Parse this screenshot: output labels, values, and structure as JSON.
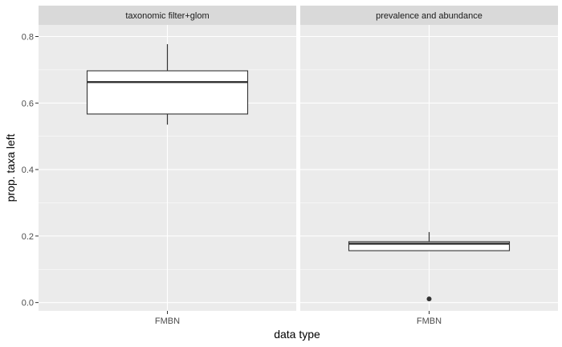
{
  "chart_data": {
    "type": "boxplot",
    "xlabel": "data type",
    "ylabel": "prop. taxa left",
    "ylim": [
      -0.025,
      0.835
    ],
    "yticks": [
      0.0,
      0.2,
      0.4,
      0.6,
      0.8
    ],
    "ytick_labels": [
      "0.0",
      "0.2",
      "0.4",
      "0.6",
      "0.8"
    ],
    "grid": true,
    "facets": [
      {
        "strip": "taxonomic filter+glom",
        "categories": [
          "FMBN"
        ],
        "boxes": [
          {
            "category": "FMBN",
            "whisker_low": 0.535,
            "q1": 0.567,
            "median": 0.663,
            "q3": 0.697,
            "whisker_high": 0.777,
            "outliers": []
          }
        ]
      },
      {
        "strip": "prevalence and abundance",
        "categories": [
          "FMBN"
        ],
        "boxes": [
          {
            "category": "FMBN",
            "whisker_low": 0.156,
            "q1": 0.156,
            "median": 0.177,
            "q3": 0.183,
            "whisker_high": 0.212,
            "outliers": [
              0.011
            ]
          }
        ]
      }
    ]
  },
  "colors": {
    "panel_bg": "#ebebeb",
    "strip_bg": "#d9d9d9",
    "grid_major": "#ffffff",
    "box_fill": "#ffffff",
    "box_line": "#333333"
  }
}
